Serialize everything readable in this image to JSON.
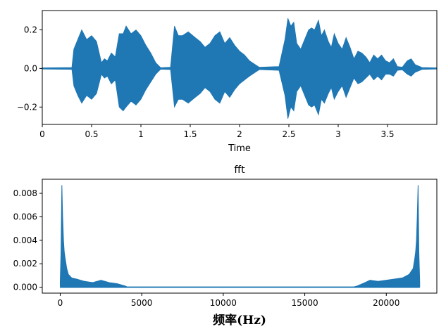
{
  "chart_data": [
    {
      "type": "line",
      "title": "",
      "xlabel": "Time",
      "ylabel": "",
      "xlim": [
        0,
        4.0
      ],
      "ylim": [
        -0.29,
        0.3
      ],
      "x_ticks": [
        0,
        0.5,
        1,
        1.5,
        2,
        2.5,
        3,
        3.5
      ],
      "x_tick_labels": [
        "0",
        "0.5",
        "1",
        "1.5",
        "2",
        "2.5",
        "3",
        "3.5"
      ],
      "y_ticks": [
        -0.2,
        0.0,
        0.2
      ],
      "y_tick_labels": [
        "−0.2",
        "0.0",
        "0.2"
      ],
      "color": "#1f77b4",
      "envelope_series": {
        "name": "",
        "x": [
          0.0,
          0.3,
          0.32,
          0.36,
          0.4,
          0.45,
          0.5,
          0.55,
          0.6,
          0.63,
          0.66,
          0.7,
          0.74,
          0.78,
          0.82,
          0.85,
          0.9,
          0.95,
          1.0,
          1.05,
          1.1,
          1.15,
          1.2,
          1.3,
          1.34,
          1.38,
          1.42,
          1.48,
          1.55,
          1.6,
          1.65,
          1.7,
          1.75,
          1.8,
          1.85,
          1.9,
          1.95,
          2.0,
          2.05,
          2.1,
          2.2,
          2.4,
          2.46,
          2.49,
          2.52,
          2.55,
          2.58,
          2.62,
          2.66,
          2.7,
          2.73,
          2.76,
          2.8,
          2.83,
          2.86,
          2.9,
          2.93,
          2.96,
          3.0,
          3.04,
          3.08,
          3.12,
          3.16,
          3.2,
          3.24,
          3.28,
          3.32,
          3.36,
          3.4,
          3.44,
          3.48,
          3.52,
          3.56,
          3.6,
          3.65,
          3.7,
          3.74,
          3.78,
          3.85,
          4.0
        ],
        "upper": [
          0.003,
          0.005,
          0.1,
          0.15,
          0.2,
          0.15,
          0.17,
          0.14,
          0.03,
          0.05,
          0.04,
          0.08,
          0.06,
          0.18,
          0.18,
          0.22,
          0.18,
          0.2,
          0.17,
          0.12,
          0.08,
          0.03,
          0.004,
          0.006,
          0.22,
          0.17,
          0.17,
          0.19,
          0.16,
          0.14,
          0.11,
          0.13,
          0.17,
          0.19,
          0.13,
          0.16,
          0.12,
          0.09,
          0.07,
          0.04,
          0.006,
          0.01,
          0.15,
          0.26,
          0.22,
          0.24,
          0.13,
          0.1,
          0.15,
          0.2,
          0.21,
          0.2,
          0.25,
          0.17,
          0.2,
          0.14,
          0.11,
          0.18,
          0.13,
          0.1,
          0.16,
          0.11,
          0.05,
          0.09,
          0.08,
          0.06,
          0.03,
          0.07,
          0.05,
          0.07,
          0.04,
          0.03,
          0.05,
          0.01,
          0.007,
          0.04,
          0.05,
          0.02,
          0.005,
          0.003
        ],
        "lower": [
          -0.003,
          -0.005,
          -0.09,
          -0.14,
          -0.18,
          -0.14,
          -0.16,
          -0.13,
          -0.03,
          -0.05,
          -0.04,
          -0.08,
          -0.06,
          -0.2,
          -0.22,
          -0.2,
          -0.17,
          -0.19,
          -0.16,
          -0.11,
          -0.07,
          -0.03,
          -0.004,
          -0.006,
          -0.2,
          -0.16,
          -0.16,
          -0.18,
          -0.15,
          -0.13,
          -0.1,
          -0.12,
          -0.16,
          -0.18,
          -0.12,
          -0.15,
          -0.11,
          -0.08,
          -0.06,
          -0.04,
          -0.006,
          -0.01,
          -0.14,
          -0.26,
          -0.2,
          -0.22,
          -0.12,
          -0.09,
          -0.14,
          -0.19,
          -0.2,
          -0.19,
          -0.24,
          -0.16,
          -0.18,
          -0.13,
          -0.1,
          -0.16,
          -0.12,
          -0.09,
          -0.15,
          -0.1,
          -0.05,
          -0.08,
          -0.07,
          -0.05,
          -0.03,
          -0.06,
          -0.04,
          -0.06,
          -0.03,
          -0.03,
          -0.04,
          -0.01,
          -0.007,
          -0.03,
          -0.04,
          -0.02,
          -0.005,
          -0.003
        ]
      }
    },
    {
      "type": "line",
      "title": "fft",
      "xlabel": "频率(Hz)",
      "ylabel": "",
      "xlim": [
        -1100,
        23100
      ],
      "ylim": [
        -0.0005,
        0.0092
      ],
      "x_ticks": [
        0,
        5000,
        10000,
        15000,
        20000
      ],
      "x_tick_labels": [
        "0",
        "5000",
        "10000",
        "15000",
        "20000"
      ],
      "y_ticks": [
        0.0,
        0.002,
        0.004,
        0.006,
        0.008
      ],
      "y_tick_labels": [
        "0.000",
        "0.002",
        "0.004",
        "0.006",
        "0.008"
      ],
      "color": "#1f77b4",
      "envelope_series": {
        "name": "",
        "x": [
          0,
          50,
          100,
          150,
          200,
          250,
          300,
          400,
          500,
          700,
          1000,
          1500,
          2000,
          2500,
          3000,
          3500,
          4000,
          4100,
          18000,
          18200,
          18700,
          19000,
          19500,
          20000,
          20500,
          21000,
          21400,
          21650,
          21750,
          21800,
          21850,
          21900,
          21950,
          22000,
          22050
        ],
        "upper": [
          0.0005,
          0.003,
          0.0087,
          0.006,
          0.004,
          0.003,
          0.0025,
          0.0016,
          0.0011,
          0.0008,
          0.0007,
          0.0005,
          0.0004,
          0.0006,
          0.0004,
          0.0003,
          0.0001,
          3e-05,
          3e-05,
          0.0001,
          0.0004,
          0.0006,
          0.0005,
          0.0006,
          0.0007,
          0.0008,
          0.0011,
          0.0016,
          0.0025,
          0.003,
          0.004,
          0.006,
          0.0087,
          0.003,
          0.0005
        ],
        "lower": [
          0.0,
          0.0,
          0.0,
          0.0,
          0.0,
          0.0,
          0.0,
          0.0,
          0.0,
          0.0,
          0.0,
          0.0,
          0.0,
          0.0,
          0.0,
          0.0,
          0.0,
          0.0,
          0.0,
          0.0,
          0.0,
          0.0,
          0.0,
          0.0,
          0.0,
          0.0,
          0.0,
          0.0,
          0.0,
          0.0,
          0.0,
          0.0,
          0.0,
          0.0,
          0.0
        ]
      }
    }
  ]
}
